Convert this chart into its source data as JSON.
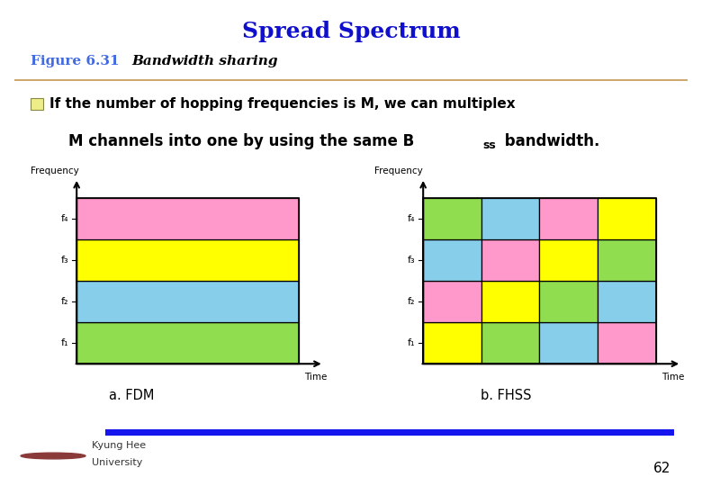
{
  "title": "Spread Spectrum",
  "title_bg": "#f9c0cb",
  "title_color": "#1010cc",
  "figure_label": "Figure 6.31",
  "figure_label_color": "#4169e1",
  "figure_subtitle": "Bandwidth sharing",
  "bullet_text1": "If the number of hopping frequencies is M, we can multiplex",
  "bullet_text2a": "M channels into one by using the same B",
  "bullet_subscript": "ss",
  "bullet_text2b": " bandwidth.",
  "bg_color": "#ffffff",
  "sep_line_color": "#c8a060",
  "fdm_colors": [
    "#90dd50",
    "#87ceeb",
    "#ffff00",
    "#ff99cc"
  ],
  "fhss_grid": [
    [
      "#ffff00",
      "#90dd50",
      "#87ceeb",
      "#ff99cc"
    ],
    [
      "#ff99cc",
      "#ffff00",
      "#90dd50",
      "#87ceeb"
    ],
    [
      "#87ceeb",
      "#ff99cc",
      "#ffff00",
      "#90dd50"
    ],
    [
      "#90dd50",
      "#87ceeb",
      "#ff99cc",
      "#ffff00"
    ]
  ],
  "freq_labels": [
    "f₁",
    "f₂",
    "f₃",
    "f₄"
  ],
  "diagram_a_label": "a. FDM",
  "diagram_b_label": "b. FHSS",
  "footer_bar_color": "#1515ee",
  "page_number": "62"
}
